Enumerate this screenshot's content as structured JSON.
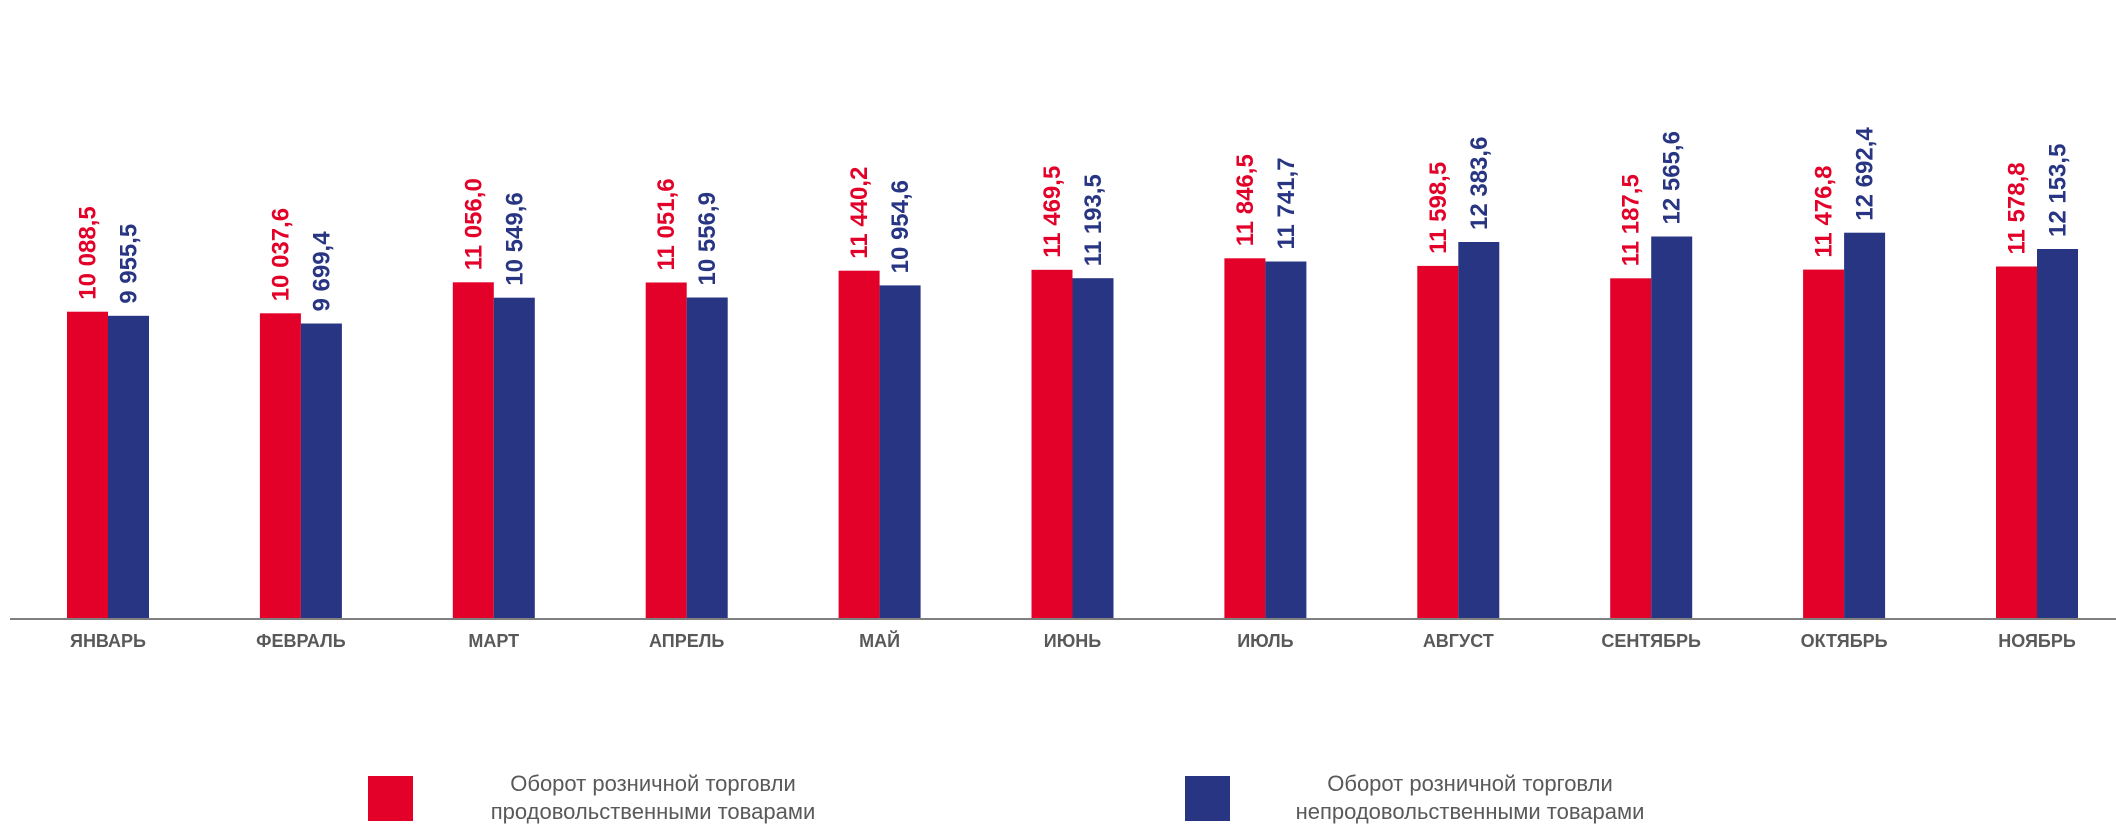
{
  "chart_data": {
    "type": "bar",
    "categories": [
      "ЯНВАРЬ",
      "ФЕВРАЛЬ",
      "МАРТ",
      "АПРЕЛЬ",
      "МАЙ",
      "ИЮНЬ",
      "ИЮЛЬ",
      "АВГУСТ",
      "СЕНТЯБРЬ",
      "ОКТЯБРЬ",
      "НОЯБРЬ"
    ],
    "series": [
      {
        "name": "Оборот розничной торговли продовольственными товарами",
        "legend_lines": [
          "Оборот розничной торговли",
          "продовольственными товарами"
        ],
        "color": "#e30129",
        "values": [
          10088.5,
          10037.6,
          11056.0,
          11051.6,
          11440.2,
          11469.5,
          11846.5,
          11598.5,
          11187.5,
          11476.8,
          11578.8
        ],
        "labels": [
          "10 088,5",
          "10 037,6",
          "11 056,0",
          "11 051,6",
          "11 440,2",
          "11 469,5",
          "11  846,5",
          "11 598,5",
          "11 187,5",
          "11 476,8",
          "11 578,8"
        ]
      },
      {
        "name": "Оборот розничной торговли непродовольственными товарами",
        "legend_lines": [
          "Оборот розничной торговли",
          "непродовольственными товарами"
        ],
        "color": "#283583",
        "values": [
          9955.5,
          9699.4,
          10549.6,
          10556.9,
          10954.6,
          11193.5,
          11741.7,
          12383.6,
          12565.6,
          12692.4,
          12153.5
        ],
        "labels": [
          "9 955,5",
          "9 699,4",
          "10 549,6",
          "10 556,9",
          "10 954,6",
          "11 193,5",
          "11 741,7",
          "12 383,6",
          "12 565,6",
          "12 692,4",
          "12 153,5"
        ]
      }
    ],
    "title": "",
    "xlabel": "",
    "ylabel": "",
    "ylim": [
      0,
      16000
    ],
    "grid": false,
    "legend": "bottom"
  }
}
